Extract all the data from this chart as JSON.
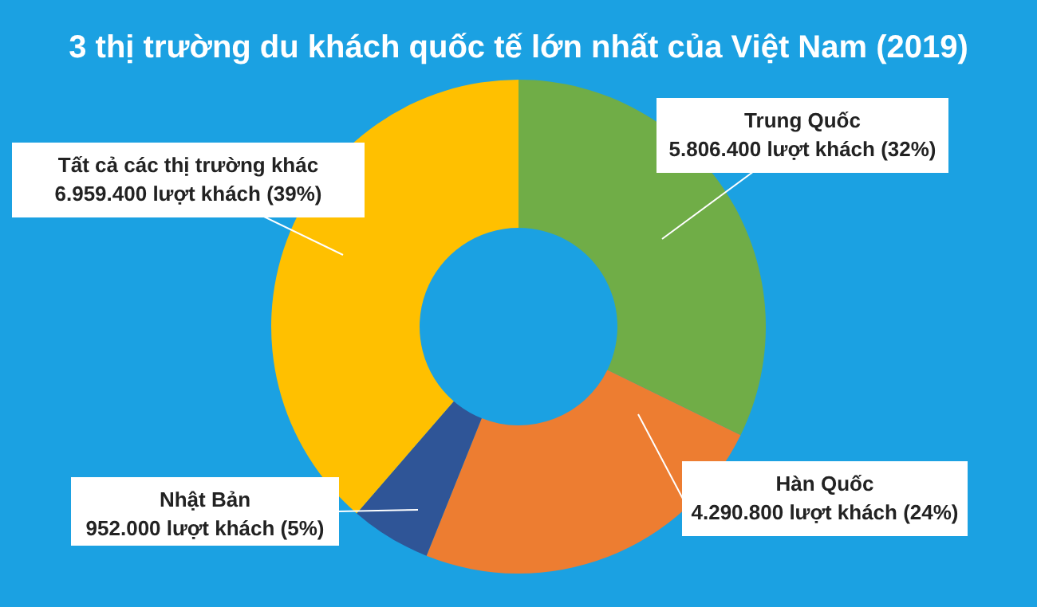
{
  "chart_data": {
    "type": "donut",
    "title": "3 thị trường du khách quốc tế lớn nhất của Việt Nam (2019)",
    "categories": [
      "Trung Quốc",
      "Hàn Quốc",
      "Nhật Bản",
      "Tất cả các thị trường khác"
    ],
    "values": [
      5806400,
      4290800,
      952000,
      6959400
    ],
    "colors": [
      "#70ad47",
      "#ed7d31",
      "#2f5597",
      "#ffc000"
    ],
    "value_labels": [
      "5.806.400 lượt khách (32%)",
      "4.290.800 lượt khách (24%)",
      "952.000 lượt khách (5%)",
      "6.959.400 lượt khách (39%)"
    ]
  }
}
